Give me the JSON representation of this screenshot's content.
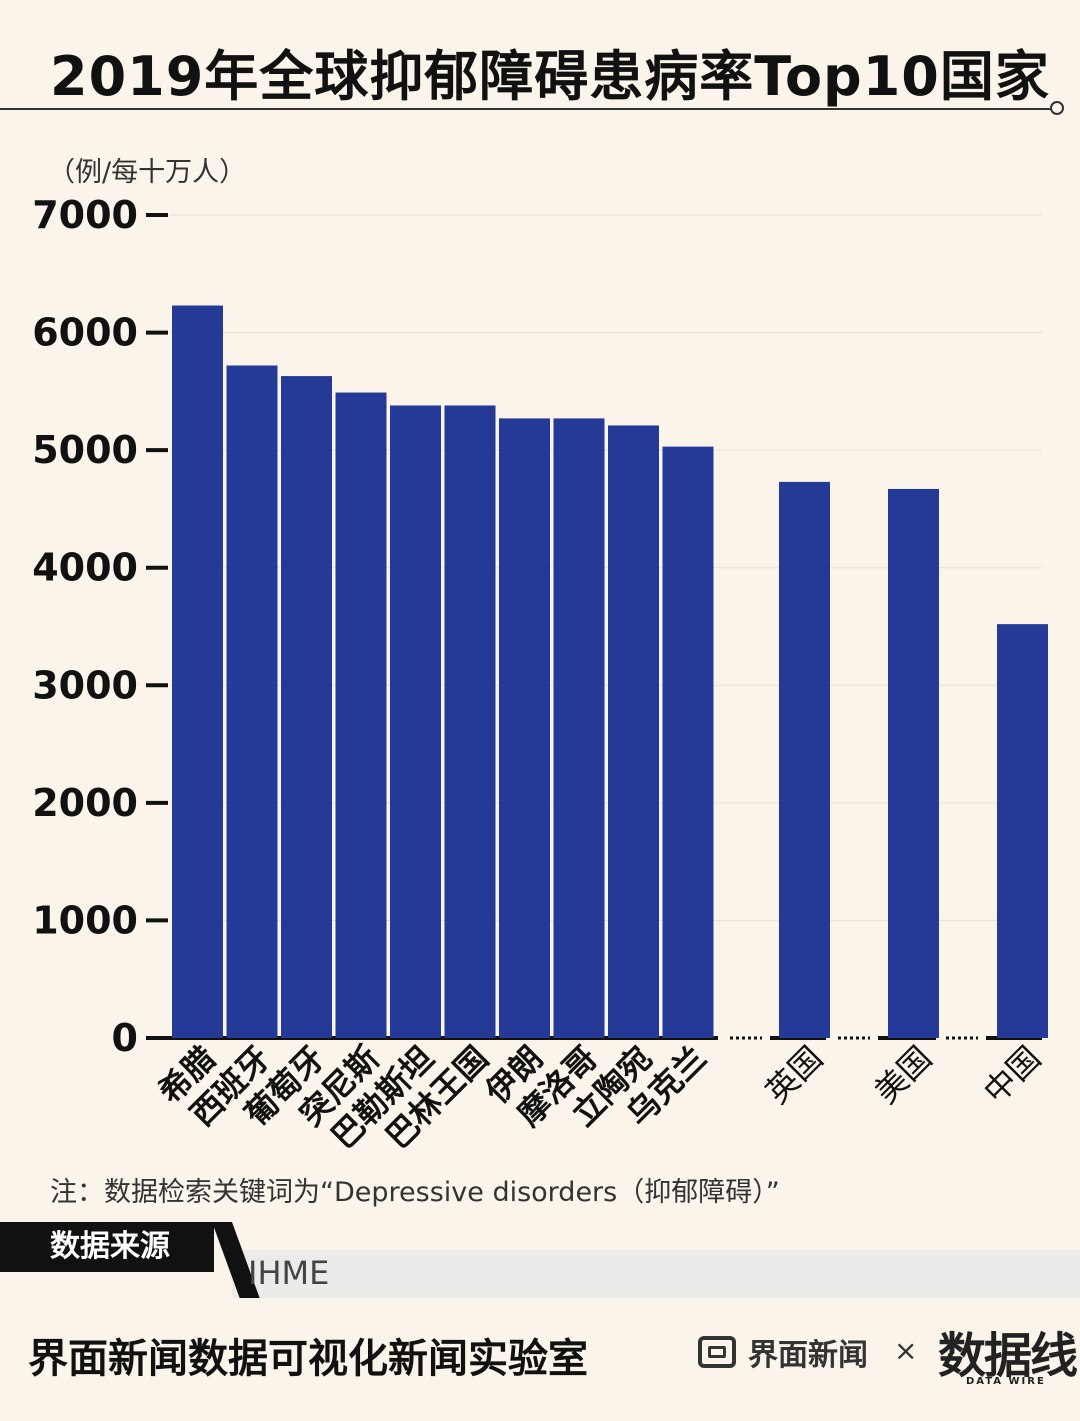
{
  "header": {
    "title": "2019年全球抑郁障碍患病率Top10国家"
  },
  "footer": {
    "note": "注：数据检索关键词为“Depressive disorders（抑郁障碍）”",
    "source_label": "数据来源",
    "source_value": "IHME",
    "lab_name": "界面新闻数据可视化新闻实验室",
    "brand_name": "界面新闻",
    "brand_sep": "×",
    "logo_text": "数据线",
    "logo_sub": "DATA WIRE"
  },
  "chart_data": {
    "type": "bar",
    "title": "2019年全球抑郁障碍患病率Top10国家",
    "ylabel": "（例/每十万人）",
    "ylim": [
      0,
      7000
    ],
    "yticks": [
      0,
      1000,
      2000,
      3000,
      4000,
      5000,
      6000,
      7000
    ],
    "grid": true,
    "bar_color": "#253a96",
    "categories": [
      "希腊",
      "西班牙",
      "葡萄牙",
      "突尼斯",
      "巴勒斯坦",
      "巴林王国",
      "伊朗",
      "摩洛哥",
      "立陶宛",
      "乌克兰",
      "英国",
      "美国",
      "中国"
    ],
    "values": [
      6230,
      5720,
      5630,
      5490,
      5380,
      5380,
      5270,
      5270,
      5210,
      5030,
      4730,
      4670,
      3520
    ],
    "series": [
      {
        "values": [
          6230,
          5720,
          5630,
          5490,
          5380,
          5380,
          5270,
          5270,
          5210,
          5030,
          4730,
          4670,
          3520
        ]
      }
    ]
  }
}
